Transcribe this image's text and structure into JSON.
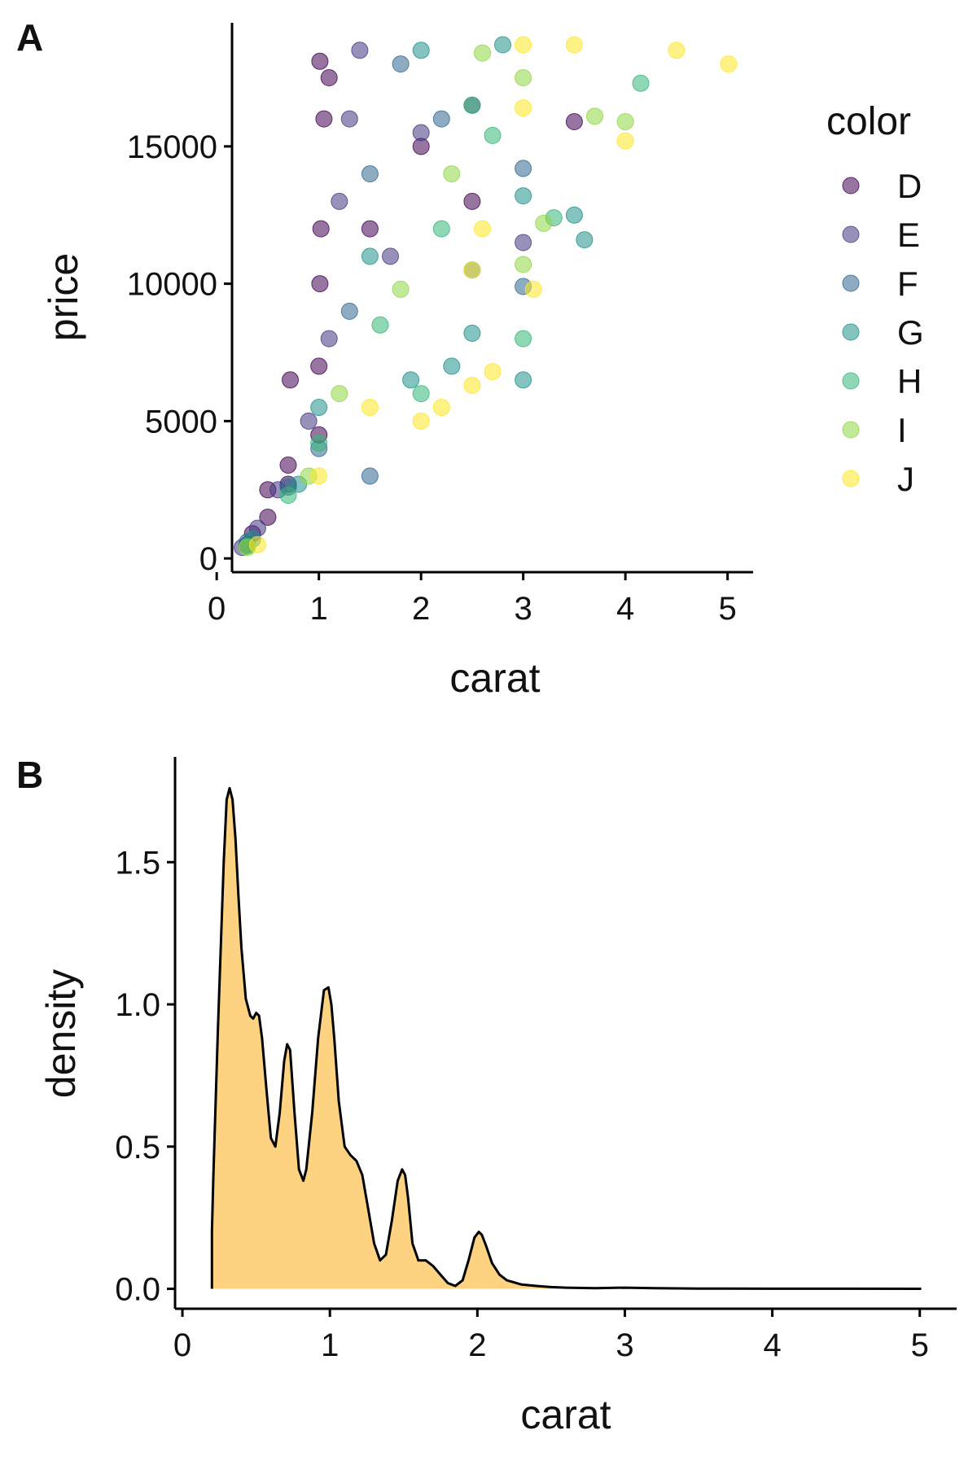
{
  "chart_data": [
    {
      "panel_tag": "A",
      "type": "scatter",
      "xlabel": "carat",
      "ylabel": "price",
      "xlim": [
        0.15,
        5.25
      ],
      "ylim": [
        -500,
        19500
      ],
      "xticks": [
        0,
        1,
        2,
        3,
        4,
        5
      ],
      "yticks": [
        0,
        5000,
        10000,
        15000
      ],
      "legend": {
        "title": "color",
        "placement": "right",
        "entries": [
          {
            "label": "D",
            "color": "#440154"
          },
          {
            "label": "E",
            "color": "#443983"
          },
          {
            "label": "F",
            "color": "#31688e"
          },
          {
            "label": "G",
            "color": "#21918c"
          },
          {
            "label": "H",
            "color": "#35b779"
          },
          {
            "label": "I",
            "color": "#90d743"
          },
          {
            "label": "J",
            "color": "#fde725"
          }
        ]
      },
      "point_opacity": 0.55,
      "grid": false,
      "series": [
        {
          "name": "D",
          "points": [
            [
              0.3,
              500
            ],
            [
              0.35,
              900
            ],
            [
              0.5,
              1500
            ],
            [
              0.5,
              2500
            ],
            [
              0.7,
              2700
            ],
            [
              0.7,
              3400
            ],
            [
              0.72,
              6500
            ],
            [
              1.0,
              4500
            ],
            [
              1.0,
              7000
            ],
            [
              1.01,
              10000
            ],
            [
              1.02,
              12000
            ],
            [
              1.05,
              16000
            ],
            [
              1.01,
              18100
            ],
            [
              1.1,
              17500
            ],
            [
              1.5,
              12000
            ],
            [
              2.0,
              15000
            ],
            [
              2.5,
              13000
            ],
            [
              3.5,
              15900
            ]
          ]
        },
        {
          "name": "E",
          "points": [
            [
              0.25,
              400
            ],
            [
              0.4,
              1100
            ],
            [
              0.6,
              2500
            ],
            [
              0.9,
              5000
            ],
            [
              1.1,
              8000
            ],
            [
              1.2,
              13000
            ],
            [
              1.3,
              16000
            ],
            [
              1.4,
              18500
            ],
            [
              1.7,
              11000
            ],
            [
              2.0,
              15500
            ],
            [
              2.5,
              16500
            ],
            [
              3.0,
              11500
            ]
          ]
        },
        {
          "name": "F",
          "points": [
            [
              0.3,
              600
            ],
            [
              0.7,
              2600
            ],
            [
              1.0,
              4000
            ],
            [
              1.3,
              9000
            ],
            [
              1.5,
              3000
            ],
            [
              1.5,
              14000
            ],
            [
              1.8,
              18000
            ],
            [
              2.2,
              16000
            ],
            [
              2.5,
              10500
            ],
            [
              3.0,
              14200
            ],
            [
              3.0,
              9900
            ]
          ]
        },
        {
          "name": "G",
          "points": [
            [
              0.35,
              700
            ],
            [
              0.8,
              2700
            ],
            [
              1.0,
              5500
            ],
            [
              1.5,
              11000
            ],
            [
              1.9,
              6500
            ],
            [
              2.0,
              18500
            ],
            [
              2.3,
              7000
            ],
            [
              2.5,
              8200
            ],
            [
              2.8,
              18700
            ],
            [
              3.0,
              13200
            ],
            [
              3.0,
              6500
            ],
            [
              3.5,
              12500
            ],
            [
              3.6,
              11600
            ]
          ]
        },
        {
          "name": "H",
          "points": [
            [
              0.3,
              450
            ],
            [
              0.7,
              2300
            ],
            [
              1.0,
              4200
            ],
            [
              1.6,
              8500
            ],
            [
              2.0,
              6000
            ],
            [
              2.2,
              12000
            ],
            [
              2.5,
              16500
            ],
            [
              2.7,
              15400
            ],
            [
              3.0,
              8000
            ],
            [
              3.3,
              12400
            ],
            [
              4.15,
              17300
            ]
          ]
        },
        {
          "name": "I",
          "points": [
            [
              0.3,
              400
            ],
            [
              0.9,
              3000
            ],
            [
              1.2,
              6000
            ],
            [
              1.8,
              9800
            ],
            [
              2.3,
              14000
            ],
            [
              2.6,
              18400
            ],
            [
              3.0,
              17500
            ],
            [
              3.0,
              10700
            ],
            [
              3.2,
              12200
            ],
            [
              3.7,
              16100
            ],
            [
              4.0,
              15900
            ]
          ]
        },
        {
          "name": "J",
          "points": [
            [
              0.4,
              500
            ],
            [
              1.0,
              3000
            ],
            [
              1.5,
              5500
            ],
            [
              2.0,
              5000
            ],
            [
              2.2,
              5500
            ],
            [
              2.5,
              6300
            ],
            [
              2.7,
              6800
            ],
            [
              2.5,
              10500
            ],
            [
              2.6,
              12000
            ],
            [
              3.0,
              18700
            ],
            [
              3.0,
              16400
            ],
            [
              3.1,
              9800
            ],
            [
              3.5,
              18700
            ],
            [
              4.0,
              15200
            ],
            [
              4.5,
              18500
            ],
            [
              5.01,
              18000
            ]
          ]
        }
      ]
    },
    {
      "panel_tag": "B",
      "type": "area",
      "xlabel": "carat",
      "ylabel": "density",
      "xlim": [
        -0.05,
        5.25
      ],
      "ylim": [
        -0.07,
        1.87
      ],
      "xticks": [
        0,
        1,
        2,
        3,
        4,
        5
      ],
      "yticks": [
        "0.0",
        "0.5",
        "1.0",
        "1.5"
      ],
      "fill_color": "#fdd281",
      "line_color": "#000000",
      "grid": false,
      "x": [
        0.2,
        0.21,
        0.24,
        0.28,
        0.3,
        0.32,
        0.34,
        0.36,
        0.38,
        0.4,
        0.43,
        0.46,
        0.48,
        0.5,
        0.52,
        0.54,
        0.57,
        0.6,
        0.63,
        0.66,
        0.69,
        0.71,
        0.73,
        0.76,
        0.79,
        0.82,
        0.84,
        0.88,
        0.92,
        0.96,
        0.99,
        1.01,
        1.03,
        1.06,
        1.1,
        1.14,
        1.18,
        1.22,
        1.26,
        1.3,
        1.34,
        1.38,
        1.42,
        1.46,
        1.49,
        1.51,
        1.53,
        1.56,
        1.6,
        1.65,
        1.7,
        1.75,
        1.8,
        1.85,
        1.9,
        1.94,
        1.98,
        2.01,
        2.03,
        2.06,
        2.1,
        2.15,
        2.2,
        2.3,
        2.4,
        2.5,
        2.6,
        2.8,
        3.0,
        3.2,
        3.5,
        4.0,
        4.5,
        5.01
      ],
      "y": [
        0.2,
        0.4,
        0.9,
        1.5,
        1.72,
        1.76,
        1.72,
        1.58,
        1.38,
        1.2,
        1.02,
        0.96,
        0.95,
        0.97,
        0.96,
        0.88,
        0.7,
        0.53,
        0.5,
        0.62,
        0.8,
        0.86,
        0.84,
        0.62,
        0.42,
        0.38,
        0.42,
        0.62,
        0.88,
        1.05,
        1.06,
        1.0,
        0.88,
        0.66,
        0.5,
        0.47,
        0.45,
        0.4,
        0.28,
        0.16,
        0.1,
        0.12,
        0.24,
        0.38,
        0.42,
        0.4,
        0.32,
        0.16,
        0.1,
        0.1,
        0.08,
        0.05,
        0.02,
        0.01,
        0.03,
        0.1,
        0.18,
        0.2,
        0.19,
        0.15,
        0.09,
        0.05,
        0.03,
        0.015,
        0.01,
        0.006,
        0.004,
        0.002,
        0.004,
        0.002,
        0.001,
        0.0005,
        0.0003,
        0.0002
      ]
    }
  ]
}
